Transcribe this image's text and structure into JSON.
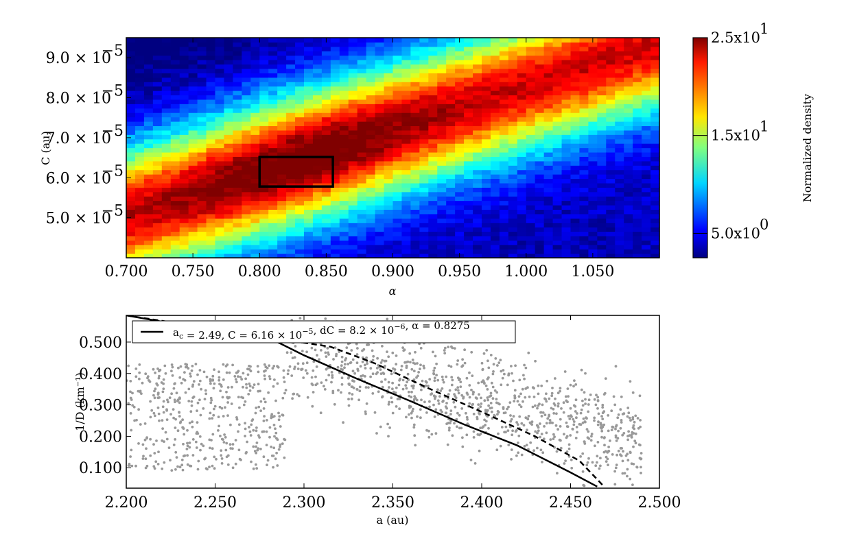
{
  "chart_data": [
    {
      "type": "heatmap",
      "xlabel": "α",
      "ylabel": "C (au)",
      "xlim": [
        0.7,
        1.1
      ],
      "ylim": [
        4e-05,
        9.5e-05
      ],
      "x_ticks": [
        "0.700",
        "0.750",
        "0.800",
        "0.850",
        "0.900",
        "0.950",
        "1.000",
        "1.050"
      ],
      "x_tick_values": [
        0.7,
        0.75,
        0.8,
        0.85,
        0.9,
        0.95,
        1.0,
        1.05
      ],
      "y_ticks": [
        {
          "value": 5e-05,
          "mant": "5.0",
          "exp": "−5"
        },
        {
          "value": 6e-05,
          "mant": "6.0",
          "exp": "−5"
        },
        {
          "value": 7e-05,
          "mant": "7.0",
          "exp": "−5"
        },
        {
          "value": 8e-05,
          "mant": "8.0",
          "exp": "−5"
        },
        {
          "value": 9e-05,
          "mant": "9.0",
          "exp": "−5"
        }
      ],
      "grid": {
        "nx": 60,
        "ny": 50,
        "ridge_alpha0": 0.7,
        "ridge_c0": 5.05e-05,
        "ridge_slope": 0.000108,
        "peak_alpha": 0.83
      },
      "colorbar": {
        "label": "Normalized density",
        "min": 2.5,
        "max": 25,
        "ticks": [
          {
            "value": 25,
            "text": "2.5x10",
            "exp": "1"
          },
          {
            "value": 15,
            "text": "1.5x10",
            "exp": "1"
          },
          {
            "value": 5,
            "text": "5.0x10",
            "exp": "0"
          }
        ]
      },
      "highlight_box": {
        "alpha": [
          0.8,
          0.855
        ],
        "C": [
          5.78e-05,
          6.52e-05
        ]
      }
    },
    {
      "type": "scatter",
      "xlabel": "a (au)",
      "ylabel": "1/D (km⁻¹)",
      "xlim": [
        2.2,
        2.5
      ],
      "ylim": [
        0.035,
        0.585
      ],
      "x_ticks": [
        "2.200",
        "2.250",
        "2.300",
        "2.350",
        "2.400",
        "2.450",
        "2.500"
      ],
      "x_tick_values": [
        2.2,
        2.25,
        2.3,
        2.35,
        2.4,
        2.45,
        2.5
      ],
      "y_ticks": [
        "0.100",
        "0.200",
        "0.300",
        "0.400",
        "0.500"
      ],
      "y_tick_values": [
        0.1,
        0.2,
        0.3,
        0.4,
        0.5
      ],
      "point_color": "#999999",
      "n_points": 1500,
      "series": [
        {
          "name": "a_c = 2.49, C = 6.16 × 10⁻⁵, dC = 8.2 × 10⁻⁶, α = 0.8275",
          "style": "solid",
          "x": [
            2.2,
            2.285,
            2.3,
            2.33,
            2.36,
            2.39,
            2.42,
            2.45,
            2.465
          ],
          "y": [
            0.585,
            0.5,
            0.458,
            0.383,
            0.312,
            0.238,
            0.171,
            0.085,
            0.04
          ]
        },
        {
          "name": "",
          "style": "dashed",
          "x": [
            2.2,
            2.315,
            2.34,
            2.37,
            2.4,
            2.43,
            2.455,
            2.468
          ],
          "y": [
            0.585,
            0.485,
            0.432,
            0.353,
            0.278,
            0.2,
            0.122,
            0.045
          ]
        }
      ],
      "legend": {
        "placement": "top",
        "text_parts": [
          {
            "t": "a"
          },
          {
            "t": "c",
            "sub": true
          },
          {
            "t": " = 2.49,  C = 6.16 × 10"
          },
          {
            "t": "−5",
            "sup": true
          },
          {
            "t": ",  dC = 8.2 × 10"
          },
          {
            "t": "−6",
            "sup": true
          },
          {
            "t": ",  α = 0.8275"
          }
        ]
      }
    }
  ]
}
